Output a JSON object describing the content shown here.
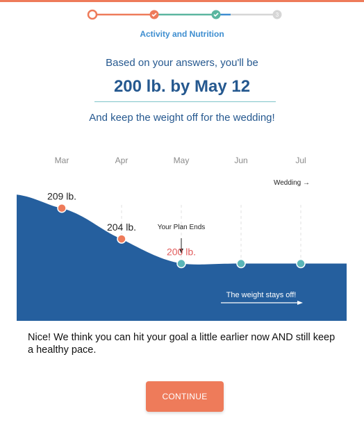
{
  "progress": {
    "step_label": "Activity and Nutrition",
    "steps": [
      {
        "state": "current"
      },
      {
        "state": "done"
      },
      {
        "state": "done"
      },
      {
        "state": "upcoming",
        "number": "3"
      }
    ],
    "colors": {
      "orange": "#ee7b5a",
      "teal": "#5bb6a0",
      "blue": "#3e8ed0",
      "gray": "#d6d6d6"
    }
  },
  "summary": {
    "intro": "Based on your answers, you'll be",
    "headline": "200 lb. by May 12",
    "subline": "And keep the weight off for the wedding!"
  },
  "chart_data": {
    "type": "area",
    "categories": [
      "Mar",
      "Apr",
      "May",
      "Jun",
      "Jul"
    ],
    "points": [
      {
        "month": "Mar",
        "value": 209,
        "label": "209 lb.",
        "color": "#ee7b5a"
      },
      {
        "month": "Apr",
        "value": 204,
        "label": "204 lb.",
        "color": "#ee7b5a"
      },
      {
        "month": "May",
        "value": 200,
        "label": "200 lb.",
        "color": "#5bb6b8"
      },
      {
        "month": "Jun",
        "value": 200,
        "label": "",
        "color": "#5bb6b8"
      },
      {
        "month": "Jul",
        "value": 200,
        "label": "",
        "color": "#5bb6b8"
      }
    ],
    "ylim": [
      196,
      211
    ],
    "fill_color": "#255f9e",
    "goal_label_color": "#e25c5c",
    "annotations": {
      "plan_end": "Your Plan Ends",
      "wedding": "Wedding →",
      "stays_off": "The weight stays off!"
    }
  },
  "message": "Nice! We think you can hit your goal a little earlier now AND still keep a healthy pace.",
  "continue_label": "CONTINUE"
}
